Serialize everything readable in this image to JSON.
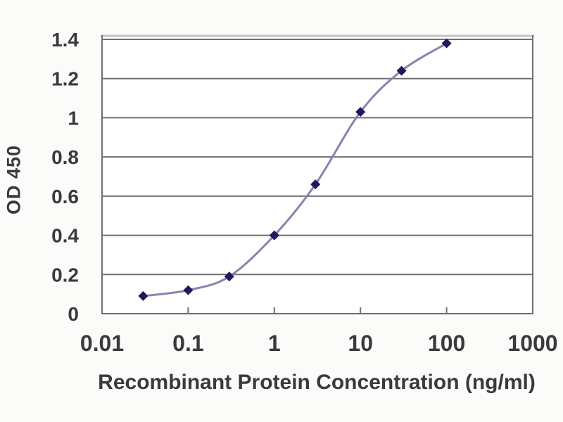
{
  "chart_data": {
    "type": "line",
    "title": "",
    "xlabel": "Recombinant Protein Concentration (ng/ml)",
    "ylabel": "OD 450",
    "x": [
      0.03,
      0.1,
      0.3,
      1,
      3,
      10,
      30,
      100
    ],
    "y": [
      0.09,
      0.12,
      0.19,
      0.4,
      0.66,
      1.03,
      1.24,
      1.38
    ],
    "xscale": "log",
    "xlim": [
      0.01,
      1000
    ],
    "ylim": [
      0,
      1.4
    ],
    "xticks": [
      0.01,
      0.1,
      1,
      10,
      100,
      1000
    ],
    "xtick_labels": [
      "0.01",
      "0.1",
      "1",
      "10",
      "100",
      "1000"
    ],
    "yticks": [
      0,
      0.2,
      0.4,
      0.6,
      0.8,
      1,
      1.2,
      1.4
    ],
    "ytick_labels": [
      "0",
      "0.2",
      "0.4",
      "0.6",
      "0.8",
      "1",
      "1.2",
      "1.4"
    ],
    "grid": "horizontal",
    "legend": "none",
    "marker": "diamond",
    "smooth": true,
    "colors": {
      "line": "#8585ad",
      "marker": "#1d1a5e",
      "grid": "#6f6f6f",
      "top_border": "#c4c4c4",
      "plot_bg": "#ffffff",
      "page_bg": "#fbfbf9",
      "text": "#3a3a3a"
    }
  }
}
